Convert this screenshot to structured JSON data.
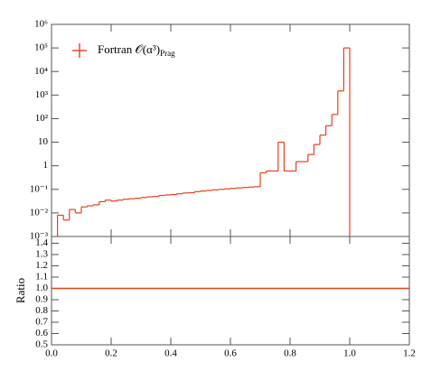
{
  "chart_data": [
    {
      "type": "histogram",
      "ylog": true,
      "color": "#e8401c",
      "series_name": "Fortran 𝒪(α³)",
      "series_name_subscript": "Prag",
      "legend": "upper left",
      "bins": [
        0.02,
        0.04,
        0.06,
        0.08,
        0.1,
        0.12,
        0.14,
        0.16,
        0.18,
        0.2,
        0.22,
        0.24,
        0.26,
        0.28,
        0.3,
        0.32,
        0.34,
        0.36,
        0.38,
        0.4,
        0.42,
        0.44,
        0.46,
        0.48,
        0.5,
        0.52,
        0.54,
        0.56,
        0.58,
        0.6,
        0.62,
        0.64,
        0.66,
        0.68,
        0.7,
        0.72,
        0.74,
        0.76,
        0.78,
        0.8,
        0.82,
        0.84,
        0.86,
        0.88,
        0.9,
        0.92,
        0.94,
        0.96,
        0.98,
        1.0
      ],
      "values": [
        0.008,
        0.005,
        0.014,
        0.01,
        0.018,
        0.02,
        0.022,
        0.03,
        0.035,
        0.032,
        0.035,
        0.038,
        0.04,
        0.042,
        0.045,
        0.048,
        0.05,
        0.055,
        0.058,
        0.06,
        0.065,
        0.07,
        0.072,
        0.08,
        0.085,
        0.09,
        0.095,
        0.1,
        0.105,
        0.11,
        0.115,
        0.12,
        0.125,
        0.13,
        0.5,
        0.6,
        0.6,
        10,
        0.6,
        0.6,
        1.5,
        1.5,
        3,
        8,
        20,
        50,
        150,
        1500,
        100000
      ],
      "xlim": [
        0,
        1.2
      ],
      "ylim": [
        0.001,
        1000000
      ],
      "yticks": [
        {
          "value": 0.001,
          "label": "10⁻³"
        },
        {
          "value": 0.01,
          "label": "10⁻²"
        },
        {
          "value": 0.1,
          "label": "10⁻¹"
        },
        1,
        10,
        {
          "value": 100,
          "label": "10²"
        },
        {
          "value": 1000,
          "label": "10³"
        },
        {
          "value": 10000,
          "label": "10⁴"
        },
        {
          "value": 100000,
          "label": "10⁵"
        },
        {
          "value": 1000000,
          "label": "10⁶"
        }
      ]
    },
    {
      "type": "line",
      "y_label": "Ratio",
      "color": "#e8401c",
      "x": [
        0,
        1.2
      ],
      "values": [
        1,
        1
      ],
      "xlim": [
        0,
        1.2
      ],
      "xticks": [
        {
          "value": 0,
          "label": "0.0"
        },
        0.2,
        0.4,
        0.6,
        0.8,
        {
          "value": 1,
          "label": "1.0"
        },
        1.2
      ],
      "ylim": [
        0.5,
        1.46
      ],
      "yticks": [
        0.5,
        0.6,
        0.7,
        0.8,
        0.9,
        {
          "value": 1,
          "label": "1.0"
        },
        1.1,
        1.2,
        1.3,
        1.4
      ]
    }
  ]
}
